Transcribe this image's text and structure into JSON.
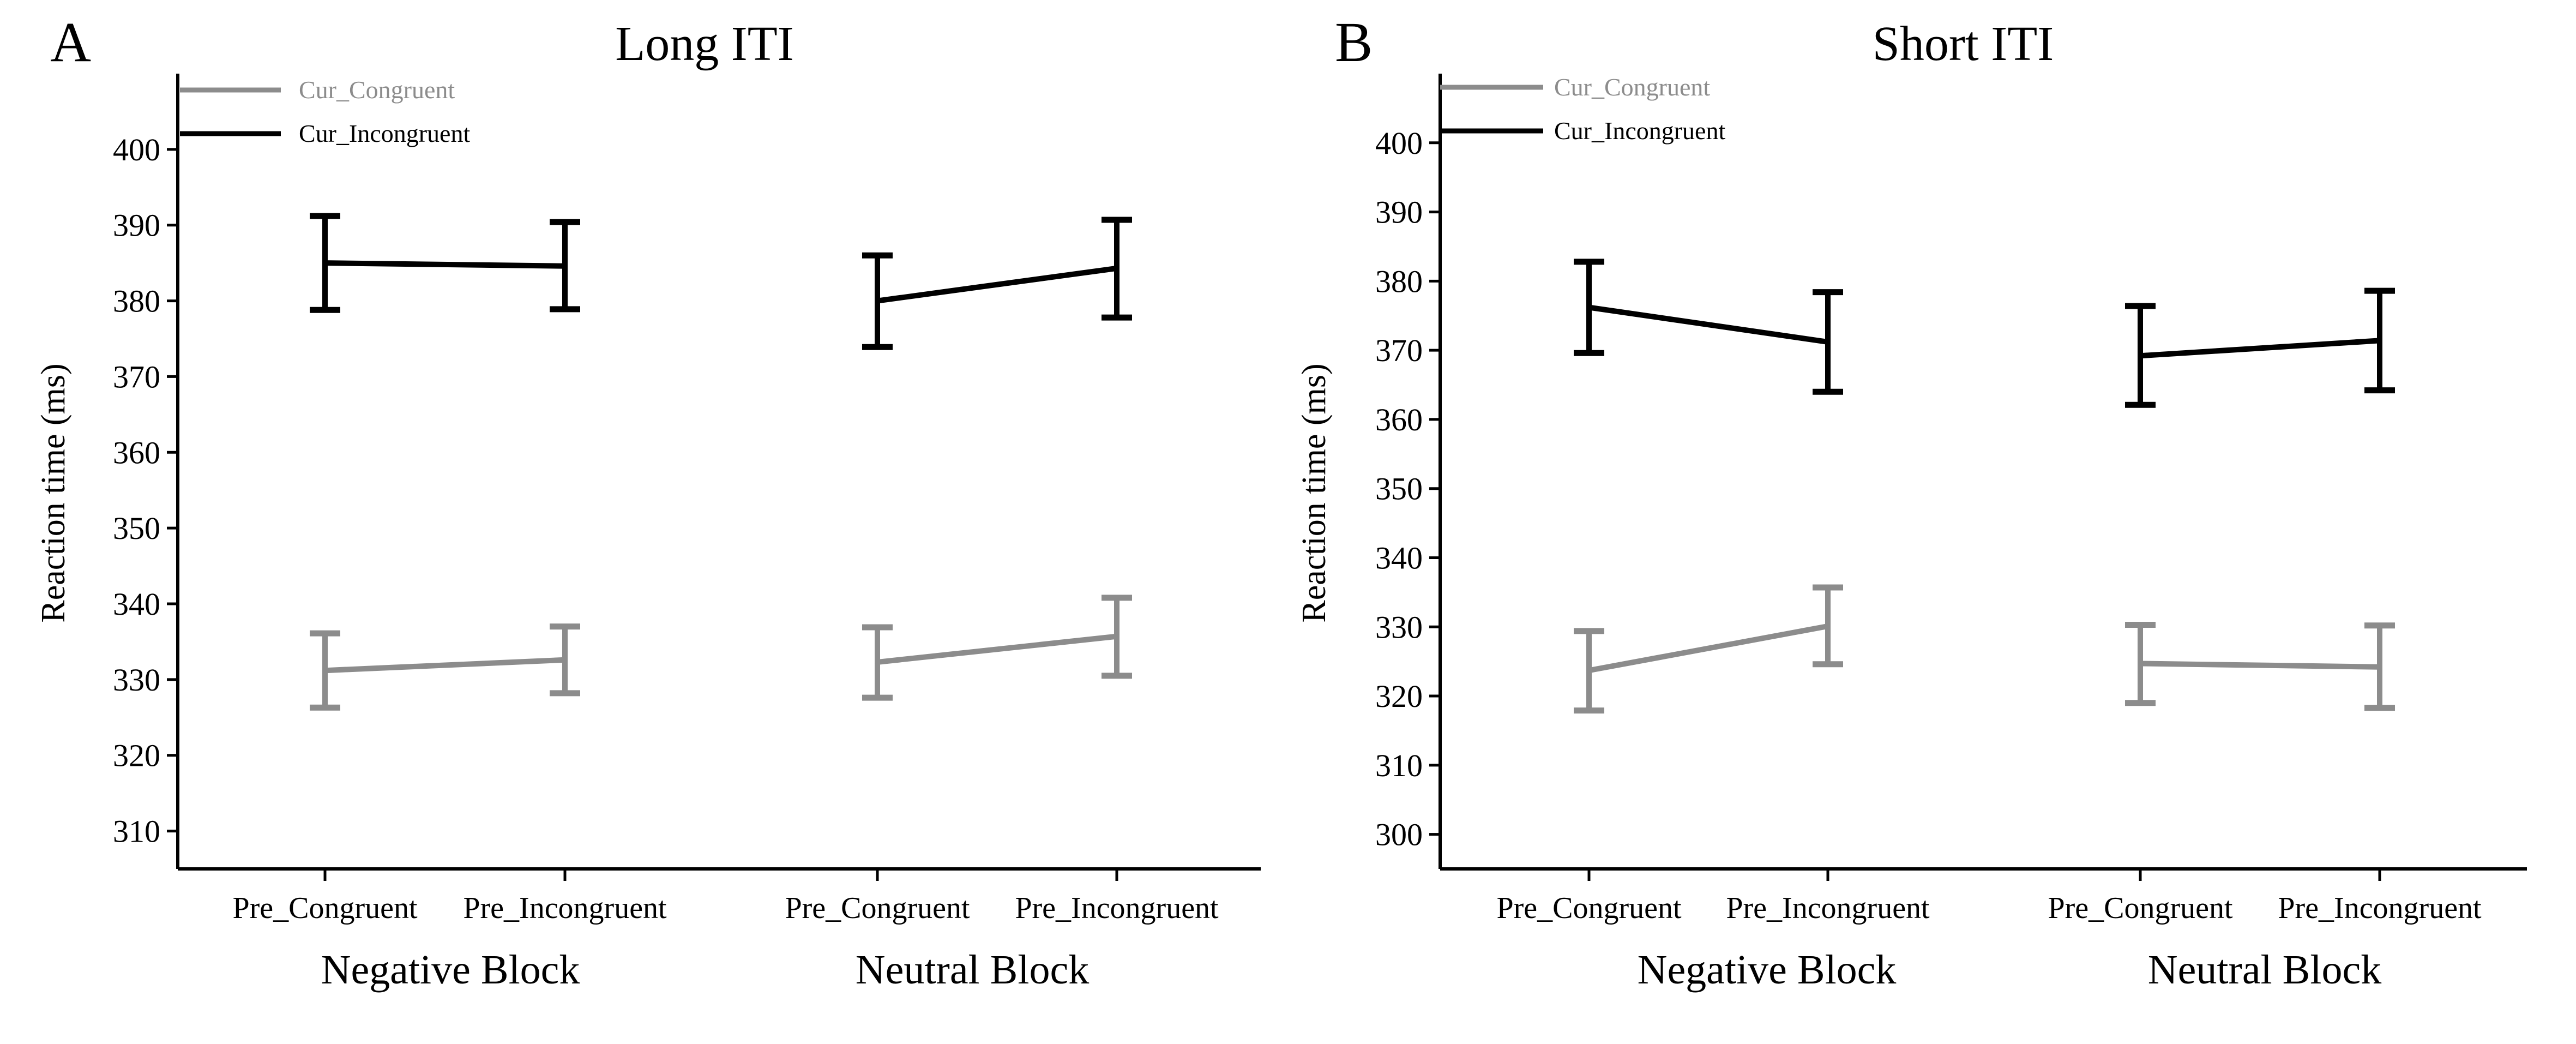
{
  "chart_data": [
    {
      "type": "line",
      "panel": "A",
      "title": "Long ITI",
      "ylabel": "Reaction time (ms)",
      "xlabel": "",
      "ylim": [
        305,
        410
      ],
      "yticks": [
        310,
        320,
        330,
        340,
        350,
        360,
        370,
        380,
        390,
        400
      ],
      "groups": [
        {
          "name": "Negative Block",
          "categories": [
            "Pre_Congruent",
            "Pre_Incongruent"
          ]
        },
        {
          "name": "Neutral Block",
          "categories": [
            "Pre_Congruent",
            "Pre_Incongruent"
          ]
        }
      ],
      "legend": {
        "position": "top-left",
        "entries": [
          "Cur_Congruent",
          "Cur_Incongruent"
        ]
      },
      "series": [
        {
          "name": "Cur_Congruent",
          "color": "#8c8c8c",
          "values": [
            [
              331.2,
              332.6
            ],
            [
              332.3,
              335.7
            ]
          ],
          "err_low": [
            [
              326.3,
              328.2
            ],
            [
              327.6,
              330.5
            ]
          ],
          "err_high": [
            [
              336.1,
              337.0
            ],
            [
              336.9,
              340.8
            ]
          ]
        },
        {
          "name": "Cur_Incongruent",
          "color": "#000000",
          "values": [
            [
              385.0,
              384.6
            ],
            [
              380.0,
              384.3
            ]
          ],
          "err_low": [
            [
              378.8,
              378.9
            ],
            [
              373.9,
              377.8
            ]
          ],
          "err_high": [
            [
              391.2,
              390.4
            ],
            [
              386.0,
              390.7
            ]
          ]
        }
      ]
    },
    {
      "type": "line",
      "panel": "B",
      "title": "Short ITI",
      "ylabel": "Reaction time (ms)",
      "xlabel": "",
      "ylim": [
        295,
        410
      ],
      "yticks": [
        300,
        310,
        320,
        330,
        340,
        350,
        360,
        370,
        380,
        390,
        400
      ],
      "groups": [
        {
          "name": "Negative Block",
          "categories": [
            "Pre_Congruent",
            "Pre_Incongruent"
          ]
        },
        {
          "name": "Neutral Block",
          "categories": [
            "Pre_Congruent",
            "Pre_Incongruent"
          ]
        }
      ],
      "legend": {
        "position": "top-left",
        "entries": [
          "Cur_Congruent",
          "Cur_Incongruent"
        ]
      },
      "series": [
        {
          "name": "Cur_Congruent",
          "color": "#8c8c8c",
          "values": [
            [
              323.7,
              330.1
            ],
            [
              324.7,
              324.2
            ]
          ],
          "err_low": [
            [
              317.9,
              324.6
            ],
            [
              319.0,
              318.3
            ]
          ],
          "err_high": [
            [
              329.4,
              335.7
            ],
            [
              330.3,
              330.2
            ]
          ]
        },
        {
          "name": "Cur_Incongruent",
          "color": "#000000",
          "values": [
            [
              376.2,
              371.2
            ],
            [
              369.2,
              371.4
            ]
          ],
          "err_low": [
            [
              369.6,
              364.0
            ],
            [
              362.1,
              364.2
            ]
          ],
          "err_high": [
            [
              382.8,
              378.4
            ],
            [
              376.4,
              378.6
            ]
          ]
        }
      ]
    }
  ]
}
